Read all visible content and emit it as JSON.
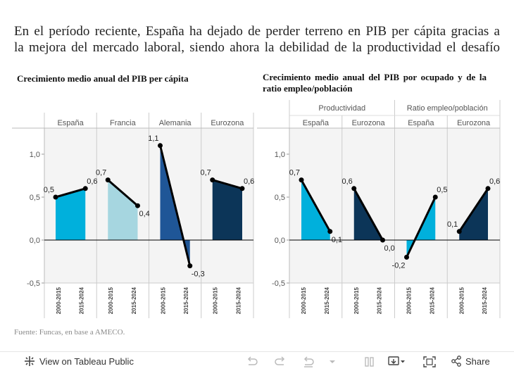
{
  "headline": {
    "line1": "En el período reciente, España ha dejado de perder terreno en PIB per cápita gracias a",
    "line2": "la mejora del mercado laboral, siendo ahora la debilidad de la productividad el desafío"
  },
  "source": "Fuente: Funcas, en base a AMECO.",
  "toolbar": {
    "view_label": "View on Tableau Public",
    "share_label": "Share"
  },
  "chart_data": [
    {
      "type": "bar",
      "title": "Crecimiento medio anual del PIB per cápita",
      "groups": [
        "España",
        "Francia",
        "Alemania",
        "Eurozona"
      ],
      "categories": [
        "2000-2015",
        "2015-2024"
      ],
      "colors": [
        "#00b0dc",
        "#a6d6e0",
        "#1f5697",
        "#0c3558"
      ],
      "series": [
        {
          "name": "España",
          "values": [
            0.5,
            0.6
          ],
          "labels": [
            "0,5",
            "0,6"
          ]
        },
        {
          "name": "Francia",
          "values": [
            0.7,
            0.4
          ],
          "labels": [
            "0,7",
            "0,4"
          ]
        },
        {
          "name": "Alemania",
          "values": [
            1.1,
            -0.3
          ],
          "labels": [
            "1,1",
            "-0,3"
          ]
        },
        {
          "name": "Eurozona",
          "values": [
            0.7,
            0.6
          ],
          "labels": [
            "0,7",
            "0,6"
          ]
        }
      ],
      "ylim": [
        -0.55,
        1.3
      ],
      "yticks": [
        -0.5,
        0.0,
        0.5,
        1.0
      ],
      "ytick_labels": [
        "-0,5",
        "0,0",
        "0,5",
        "1,0"
      ]
    },
    {
      "type": "bar",
      "title": "Crecimiento medio anual del PIB por ocupado y de la ratio empleo/población",
      "super_groups": [
        "Productividad",
        "Ratio empleo/población"
      ],
      "groups": [
        "España",
        "Eurozona",
        "España",
        "Eurozona"
      ],
      "categories": [
        "2000-2015",
        "2015-2024"
      ],
      "colors": [
        "#00b0dc",
        "#0c3558",
        "#00b0dc",
        "#0c3558"
      ],
      "series": [
        {
          "name": "Productividad - España",
          "values": [
            0.7,
            0.1
          ],
          "labels": [
            "0,7",
            "0,1"
          ]
        },
        {
          "name": "Productividad - Eurozona",
          "values": [
            0.6,
            0.0
          ],
          "labels": [
            "0,6",
            "0,0"
          ]
        },
        {
          "name": "Ratio empleo/población - España",
          "values": [
            -0.2,
            0.5
          ],
          "labels": [
            "-0,2",
            "0,5"
          ]
        },
        {
          "name": "Ratio empleo/población - Eurozona",
          "values": [
            0.1,
            0.6
          ],
          "labels": [
            "0,1",
            "0,6"
          ]
        }
      ],
      "ylim": [
        -0.55,
        1.3
      ],
      "yticks": [
        -0.5,
        0.0,
        0.5,
        1.0
      ],
      "ytick_labels": [
        "-0,5",
        "0,0",
        "0,5",
        "1,0"
      ]
    }
  ]
}
